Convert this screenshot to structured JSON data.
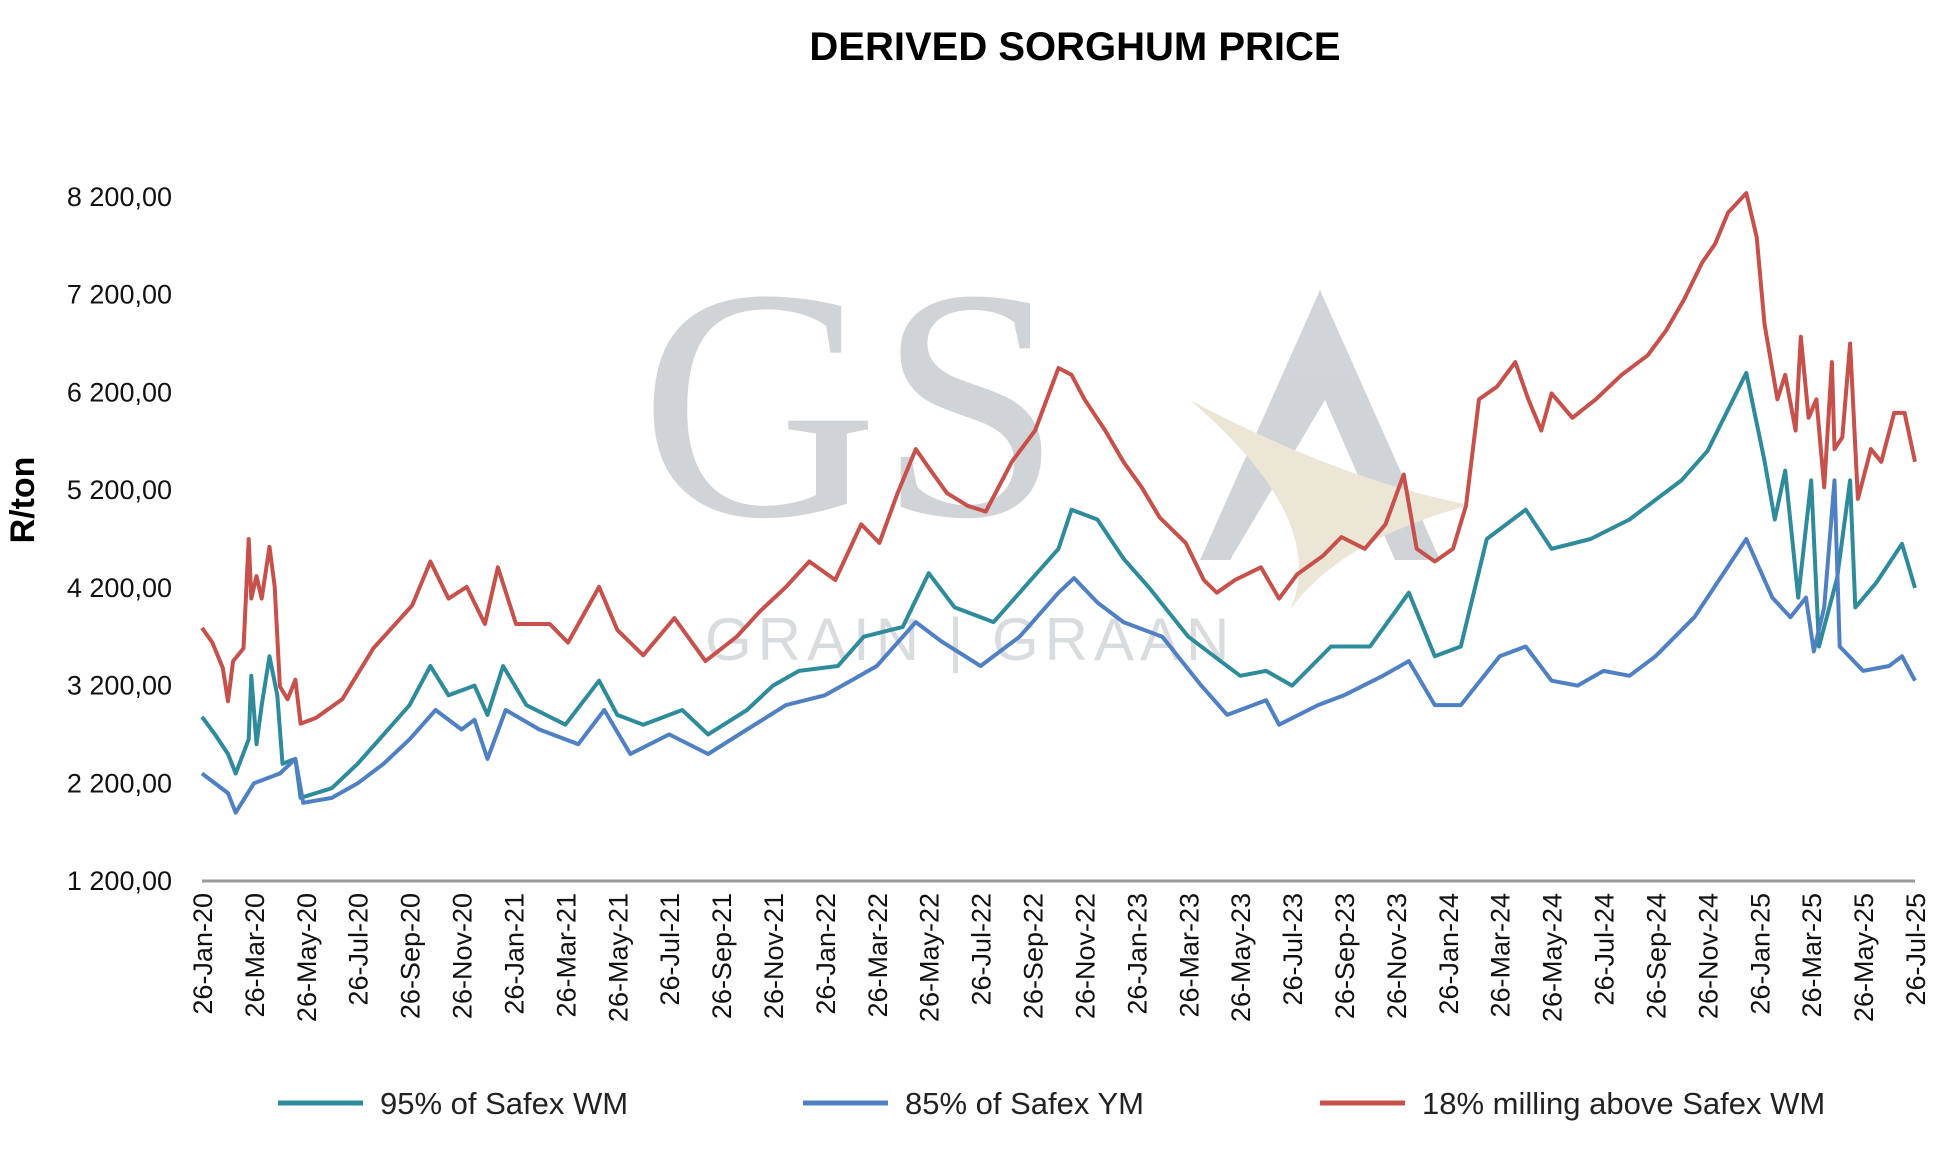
{
  "chart_data": {
    "type": "line",
    "title": "DERIVED SORGHUM PRICE",
    "xlabel": "",
    "ylabel": "R/ton",
    "ylim": [
      1200,
      8200
    ],
    "yticks": [
      "1 200,00",
      "2 200,00",
      "3 200,00",
      "4 200,00",
      "5 200,00",
      "6 200,00",
      "7 200,00",
      "8 200,00"
    ],
    "ytick_values": [
      1200,
      2200,
      3200,
      4200,
      5200,
      6200,
      7200,
      8200
    ],
    "x_unit": "months since 26-Jan-20",
    "xlim": [
      0,
      66
    ],
    "xticks": [
      "26-Jan-20",
      "26-Mar-20",
      "26-May-20",
      "26-Jul-20",
      "26-Sep-20",
      "26-Nov-20",
      "26-Jan-21",
      "26-Mar-21",
      "26-May-21",
      "26-Jul-21",
      "26-Sep-21",
      "26-Nov-21",
      "26-Jan-22",
      "26-Mar-22",
      "26-May-22",
      "26-Jul-22",
      "26-Sep-22",
      "26-Nov-22",
      "26-Jan-23",
      "26-Mar-23",
      "26-May-23",
      "26-Jul-23",
      "26-Sep-23",
      "26-Nov-23",
      "26-Jan-24",
      "26-Mar-24",
      "26-May-24",
      "26-Jul-24",
      "26-Sep-24",
      "26-Nov-24",
      "26-Jan-25",
      "26-Mar-25",
      "26-May-25",
      "26-Jul-25"
    ],
    "grid": false,
    "legend_position": "bottom",
    "watermark": {
      "logo": "GSA",
      "subtitle": "GRAIN | GRAAN"
    },
    "series": [
      {
        "name": "95% of Safex WM",
        "color": "#2e8b9c",
        "points": [
          [
            0,
            2880
          ],
          [
            0.5,
            2700
          ],
          [
            1,
            2500
          ],
          [
            1.3,
            2300
          ],
          [
            1.8,
            2650
          ],
          [
            1.9,
            3300
          ],
          [
            2.1,
            2600
          ],
          [
            2.3,
            3000
          ],
          [
            2.6,
            3500
          ],
          [
            2.9,
            3100
          ],
          [
            3.1,
            2400
          ],
          [
            3.6,
            2450
          ],
          [
            3.8,
            2050
          ],
          [
            5,
            2150
          ],
          [
            6,
            2400
          ],
          [
            7,
            2700
          ],
          [
            8,
            3000
          ],
          [
            8.8,
            3400
          ],
          [
            9.5,
            3100
          ],
          [
            10.5,
            3200
          ],
          [
            11,
            2900
          ],
          [
            11.6,
            3400
          ],
          [
            12.5,
            3000
          ],
          [
            14,
            2800
          ],
          [
            15.3,
            3250
          ],
          [
            16,
            2900
          ],
          [
            17,
            2800
          ],
          [
            18.5,
            2950
          ],
          [
            19.5,
            2700
          ],
          [
            21,
            2950
          ],
          [
            22,
            3200
          ],
          [
            23,
            3350
          ],
          [
            24.5,
            3400
          ],
          [
            25.5,
            3700
          ],
          [
            27,
            3800
          ],
          [
            28,
            4350
          ],
          [
            29,
            4000
          ],
          [
            30.5,
            3850
          ],
          [
            32,
            4300
          ],
          [
            33,
            4600
          ],
          [
            33.5,
            5000
          ],
          [
            34.5,
            4900
          ],
          [
            35.5,
            4500
          ],
          [
            36.5,
            4200
          ],
          [
            38,
            3700
          ],
          [
            39,
            3500
          ],
          [
            40,
            3300
          ],
          [
            41,
            3350
          ],
          [
            42,
            3200
          ],
          [
            43.5,
            3600
          ],
          [
            45,
            3600
          ],
          [
            46.5,
            4150
          ],
          [
            47.5,
            3500
          ],
          [
            48.5,
            3600
          ],
          [
            49.5,
            4700
          ],
          [
            51,
            5000
          ],
          [
            52,
            4600
          ],
          [
            53.5,
            4700
          ],
          [
            55,
            4900
          ],
          [
            57,
            5300
          ],
          [
            58,
            5600
          ],
          [
            59.5,
            6400
          ],
          [
            60.2,
            5500
          ],
          [
            60.6,
            4900
          ],
          [
            61,
            5400
          ],
          [
            61.5,
            4100
          ],
          [
            62,
            5300
          ],
          [
            62.3,
            3600
          ],
          [
            63,
            4300
          ],
          [
            63.5,
            5300
          ],
          [
            63.7,
            4000
          ],
          [
            64.5,
            4250
          ],
          [
            65.5,
            4650
          ],
          [
            66,
            4200
          ]
        ]
      },
      {
        "name": "85% of Safex YM",
        "color": "#4f80c4",
        "points": [
          [
            0,
            2300
          ],
          [
            1,
            2100
          ],
          [
            1.3,
            1900
          ],
          [
            2,
            2200
          ],
          [
            3,
            2300
          ],
          [
            3.6,
            2450
          ],
          [
            3.9,
            2000
          ],
          [
            5,
            2050
          ],
          [
            6,
            2200
          ],
          [
            7,
            2400
          ],
          [
            8,
            2650
          ],
          [
            9,
            2950
          ],
          [
            10,
            2750
          ],
          [
            10.5,
            2850
          ],
          [
            11,
            2450
          ],
          [
            11.7,
            2950
          ],
          [
            13,
            2750
          ],
          [
            14.5,
            2600
          ],
          [
            15.5,
            2950
          ],
          [
            16.5,
            2500
          ],
          [
            18,
            2700
          ],
          [
            19.5,
            2500
          ],
          [
            21,
            2750
          ],
          [
            22.5,
            3000
          ],
          [
            24,
            3100
          ],
          [
            25,
            3250
          ],
          [
            26,
            3400
          ],
          [
            27.5,
            3850
          ],
          [
            28.5,
            3650
          ],
          [
            30,
            3400
          ],
          [
            31.5,
            3700
          ],
          [
            33,
            4150
          ],
          [
            33.6,
            4300
          ],
          [
            34.5,
            4050
          ],
          [
            35.5,
            3850
          ],
          [
            37,
            3700
          ],
          [
            38.5,
            3200
          ],
          [
            39.5,
            2900
          ],
          [
            41,
            3050
          ],
          [
            41.5,
            2800
          ],
          [
            43,
            3000
          ],
          [
            44,
            3100
          ],
          [
            45.5,
            3300
          ],
          [
            46.5,
            3450
          ],
          [
            47.5,
            3000
          ],
          [
            48.5,
            3000
          ],
          [
            50,
            3500
          ],
          [
            51,
            3600
          ],
          [
            52,
            3250
          ],
          [
            53,
            3200
          ],
          [
            54,
            3350
          ],
          [
            55,
            3300
          ],
          [
            56,
            3500
          ],
          [
            57.5,
            3900
          ],
          [
            58.5,
            4300
          ],
          [
            59.5,
            4700
          ],
          [
            60.5,
            4100
          ],
          [
            61.2,
            3900
          ],
          [
            61.8,
            4100
          ],
          [
            62.1,
            3550
          ],
          [
            62.5,
            4000
          ],
          [
            62.9,
            5300
          ],
          [
            63.1,
            3600
          ],
          [
            64,
            3350
          ],
          [
            65,
            3400
          ],
          [
            65.5,
            3500
          ],
          [
            66,
            3250
          ]
        ]
      },
      {
        "name": "18% milling above Safex WM",
        "color": "#c8504b",
        "points": [
          [
            0,
            3790
          ],
          [
            0.4,
            3640
          ],
          [
            0.8,
            3380
          ],
          [
            1,
            3040
          ],
          [
            1.2,
            3450
          ],
          [
            1.6,
            3580
          ],
          [
            1.8,
            4700
          ],
          [
            1.9,
            4090
          ],
          [
            2.1,
            4320
          ],
          [
            2.3,
            4090
          ],
          [
            2.6,
            4620
          ],
          [
            2.8,
            4210
          ],
          [
            3,
            3190
          ],
          [
            3.3,
            3060
          ],
          [
            3.6,
            3260
          ],
          [
            3.8,
            2810
          ],
          [
            4.4,
            2870
          ],
          [
            5.4,
            3060
          ],
          [
            6.6,
            3580
          ],
          [
            8.1,
            4020
          ],
          [
            8.8,
            4470
          ],
          [
            9.5,
            4090
          ],
          [
            10.2,
            4210
          ],
          [
            10.9,
            3830
          ],
          [
            11.4,
            4410
          ],
          [
            12.1,
            3830
          ],
          [
            13.4,
            3830
          ],
          [
            14.1,
            3640
          ],
          [
            15.3,
            4210
          ],
          [
            16,
            3770
          ],
          [
            17,
            3510
          ],
          [
            18.2,
            3890
          ],
          [
            19.4,
            3450
          ],
          [
            20.6,
            3700
          ],
          [
            21.5,
            3960
          ],
          [
            22.5,
            4210
          ],
          [
            23.4,
            4470
          ],
          [
            24.4,
            4280
          ],
          [
            25.4,
            4850
          ],
          [
            26.1,
            4660
          ],
          [
            26.8,
            5170
          ],
          [
            27.5,
            5620
          ],
          [
            28,
            5430
          ],
          [
            28.7,
            5170
          ],
          [
            29.5,
            5040
          ],
          [
            30.2,
            4980
          ],
          [
            31.2,
            5490
          ],
          [
            32.1,
            5810
          ],
          [
            33,
            6450
          ],
          [
            33.5,
            6380
          ],
          [
            34,
            6130
          ],
          [
            34.8,
            5810
          ],
          [
            35.5,
            5490
          ],
          [
            36.2,
            5230
          ],
          [
            36.9,
            4920
          ],
          [
            37.9,
            4660
          ],
          [
            38.6,
            4280
          ],
          [
            39.1,
            4150
          ],
          [
            39.8,
            4280
          ],
          [
            40.8,
            4410
          ],
          [
            41.5,
            4090
          ],
          [
            42.2,
            4340
          ],
          [
            43.2,
            4530
          ],
          [
            43.9,
            4720
          ],
          [
            44.8,
            4600
          ],
          [
            45.6,
            4850
          ],
          [
            46.3,
            5360
          ],
          [
            46.8,
            4600
          ],
          [
            47.5,
            4470
          ],
          [
            48.2,
            4600
          ],
          [
            48.7,
            5040
          ],
          [
            49.2,
            6130
          ],
          [
            49.9,
            6260
          ],
          [
            50.6,
            6510
          ],
          [
            51.1,
            6130
          ],
          [
            51.6,
            5810
          ],
          [
            52,
            6190
          ],
          [
            52.8,
            5940
          ],
          [
            53.7,
            6130
          ],
          [
            54.7,
            6380
          ],
          [
            55.7,
            6580
          ],
          [
            56.4,
            6830
          ],
          [
            57.1,
            7150
          ],
          [
            57.8,
            7530
          ],
          [
            58.3,
            7720
          ],
          [
            58.8,
            8040
          ],
          [
            59.5,
            8240
          ],
          [
            59.9,
            7790
          ],
          [
            60.2,
            6900
          ],
          [
            60.7,
            6130
          ],
          [
            61,
            6380
          ],
          [
            61.4,
            5810
          ],
          [
            61.6,
            6770
          ],
          [
            61.9,
            5940
          ],
          [
            62.2,
            6130
          ],
          [
            62.5,
            5230
          ],
          [
            62.8,
            6510
          ],
          [
            62.9,
            5620
          ],
          [
            63.2,
            5740
          ],
          [
            63.5,
            6700
          ],
          [
            63.8,
            5110
          ],
          [
            64.3,
            5620
          ],
          [
            64.7,
            5490
          ],
          [
            65.2,
            5990
          ],
          [
            65.6,
            5990
          ],
          [
            66,
            5490
          ]
        ]
      }
    ]
  }
}
